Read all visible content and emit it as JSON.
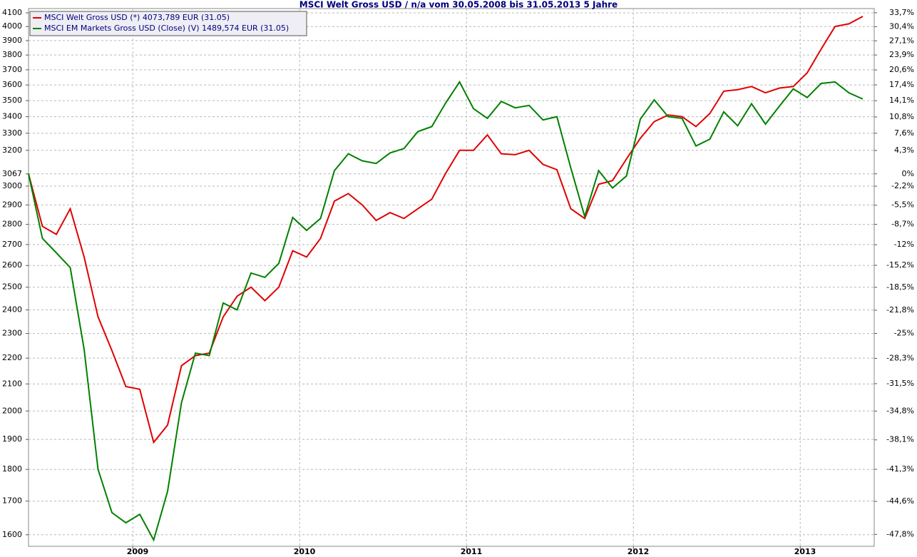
{
  "chart_data": {
    "type": "line",
    "title": "MSCI Welt Gross USD / n/a vom 30.05.2008 bis 31.05.2013 5 Jahre",
    "categories": [
      null,
      null,
      null,
      null,
      null,
      null,
      null,
      null,
      "2009",
      null,
      null,
      null,
      null,
      null,
      null,
      null,
      null,
      null,
      null,
      null,
      "2010",
      null,
      null,
      null,
      null,
      null,
      null,
      null,
      null,
      null,
      null,
      null,
      "2011",
      null,
      null,
      null,
      null,
      null,
      null,
      null,
      null,
      null,
      null,
      null,
      "2012",
      null,
      null,
      null,
      null,
      null,
      null,
      null,
      null,
      null,
      null,
      null,
      "2013",
      null,
      null,
      null,
      null
    ],
    "series": [
      {
        "name": "MSCI Welt Gross USD (*) 4073,789 EUR (31.05)",
        "color": "#e00000",
        "values": [
          3067,
          2790,
          2750,
          2880,
          2640,
          2370,
          2230,
          2090,
          2080,
          1890,
          1950,
          2170,
          2210,
          2220,
          2370,
          2460,
          2500,
          2440,
          2500,
          2670,
          2640,
          2730,
          2920,
          2960,
          2900,
          2820,
          2860,
          2830,
          2880,
          2930,
          3070,
          3200,
          3200,
          3290,
          3180,
          3175,
          3200,
          3120,
          3090,
          2880,
          2830,
          3010,
          3030,
          3150,
          3270,
          3370,
          3410,
          3400,
          3340,
          3420,
          3560,
          3570,
          3590,
          3550,
          3580,
          3590,
          3680,
          3840,
          4000,
          4020,
          4073.789
        ]
      },
      {
        "name": "MSCI EM Markets Gross USD (Close) (V) 1489,574 EUR (31.05)",
        "color": "#008000",
        "values": [
          3067,
          2730,
          2660,
          2590,
          2235,
          1800,
          1665,
          1635,
          1660,
          1585,
          1730,
          2030,
          2220,
          2210,
          2430,
          2400,
          2565,
          2545,
          2610,
          2835,
          2770,
          2830,
          3085,
          3180,
          3140,
          3125,
          3185,
          3210,
          3310,
          3340,
          3485,
          3620,
          3450,
          3390,
          3495,
          3455,
          3470,
          3380,
          3400,
          3100,
          2840,
          3085,
          2990,
          3055,
          3385,
          3505,
          3400,
          3390,
          3225,
          3265,
          3430,
          3345,
          3480,
          3355,
          3465,
          3575,
          3520,
          3610,
          3620,
          3550,
          3510
        ]
      }
    ],
    "ylim": [
      1567,
      4132
    ],
    "yscale": "log",
    "yticks": [
      1600,
      1700,
      1800,
      1900,
      2000,
      2100,
      2200,
      2300,
      2400,
      2500,
      2600,
      2700,
      2800,
      2900,
      3000,
      3067,
      3200,
      3300,
      3400,
      3500,
      3600,
      3700,
      3800,
      3900,
      4000,
      4100
    ],
    "y2lim": [
      -48.91,
      34.72
    ],
    "y2scale": "log-relative",
    "y2ticks": [
      {
        "value": 33.7,
        "label": "33,7%"
      },
      {
        "value": 30.4,
        "label": "30,4%"
      },
      {
        "value": 27.1,
        "label": "27,1%"
      },
      {
        "value": 23.9,
        "label": "23,9%"
      },
      {
        "value": 20.6,
        "label": "20,6%"
      },
      {
        "value": 17.4,
        "label": "17,4%"
      },
      {
        "value": 14.1,
        "label": "14,1%"
      },
      {
        "value": 10.8,
        "label": "10,8%"
      },
      {
        "value": 7.6,
        "label": "7,6%"
      },
      {
        "value": 4.3,
        "label": "4,3%"
      },
      {
        "value": 0,
        "label": "0%"
      },
      {
        "value": -2.2,
        "label": "-2,2%"
      },
      {
        "value": -5.5,
        "label": "-5,5%"
      },
      {
        "value": -8.7,
        "label": "-8,7%"
      },
      {
        "value": -12,
        "label": "-12%"
      },
      {
        "value": -15.2,
        "label": "-15,2%"
      },
      {
        "value": -18.5,
        "label": "-18,5%"
      },
      {
        "value": -21.8,
        "label": "-21,8%"
      },
      {
        "value": -25,
        "label": "-25%"
      },
      {
        "value": -28.3,
        "label": "-28,3%"
      },
      {
        "value": -31.5,
        "label": "-31,5%"
      },
      {
        "value": -34.8,
        "label": "-34,8%"
      },
      {
        "value": -38.1,
        "label": "-38,1%"
      },
      {
        "value": -41.3,
        "label": "-41,3%"
      },
      {
        "value": -44.6,
        "label": "-44,6%"
      },
      {
        "value": -47.8,
        "label": "-47,8%"
      }
    ],
    "grid": true,
    "legend": "top-left"
  }
}
